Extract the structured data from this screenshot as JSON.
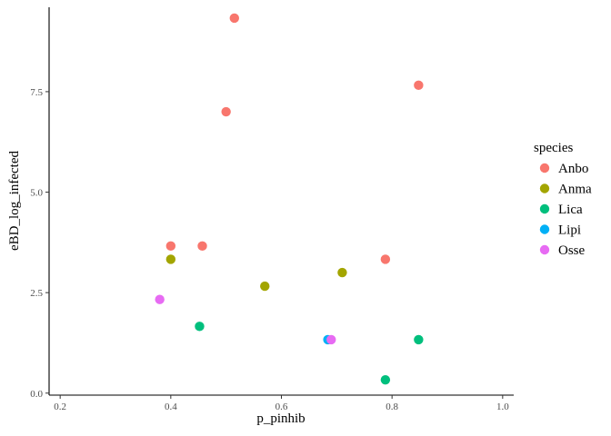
{
  "chart_data": {
    "type": "scatter",
    "xlabel": "p_pinhib",
    "ylabel": "eBD_log_infected",
    "xlim": [
      0.18,
      1.02
    ],
    "ylim": [
      -0.05,
      9.6
    ],
    "xticks": [
      0.2,
      0.4,
      0.6,
      0.8,
      1.0
    ],
    "xtick_labels": [
      "0.2",
      "0.4",
      "0.6",
      "0.8",
      "1.0"
    ],
    "yticks": [
      0,
      2.5,
      5,
      7.5
    ],
    "ytick_labels": [
      "0.0",
      "2.5",
      "5.0",
      "7.5"
    ],
    "grid": false,
    "legend": {
      "title": "species",
      "placement": "right"
    },
    "series": [
      {
        "name": "Anbo",
        "color": "#F8766D",
        "points": [
          {
            "x": 0.515,
            "y": 9.33
          },
          {
            "x": 0.848,
            "y": 7.66
          },
          {
            "x": 0.5,
            "y": 7.0
          },
          {
            "x": 0.4,
            "y": 3.66
          },
          {
            "x": 0.457,
            "y": 3.66
          },
          {
            "x": 0.788,
            "y": 3.33
          }
        ]
      },
      {
        "name": "Anma",
        "color": "#A3A500",
        "points": [
          {
            "x": 0.4,
            "y": 3.33
          },
          {
            "x": 0.71,
            "y": 3.0
          },
          {
            "x": 0.57,
            "y": 2.66
          }
        ]
      },
      {
        "name": "Lica",
        "color": "#00BF7D",
        "points": [
          {
            "x": 0.452,
            "y": 1.66
          },
          {
            "x": 0.848,
            "y": 1.33
          },
          {
            "x": 0.788,
            "y": 0.33
          }
        ]
      },
      {
        "name": "Lipi",
        "color": "#00B0F6",
        "points": [
          {
            "x": 0.684,
            "y": 1.33
          }
        ]
      },
      {
        "name": "Osse",
        "color": "#E76BF3",
        "points": [
          {
            "x": 0.38,
            "y": 2.33
          },
          {
            "x": 0.69,
            "y": 1.33
          }
        ]
      }
    ]
  }
}
